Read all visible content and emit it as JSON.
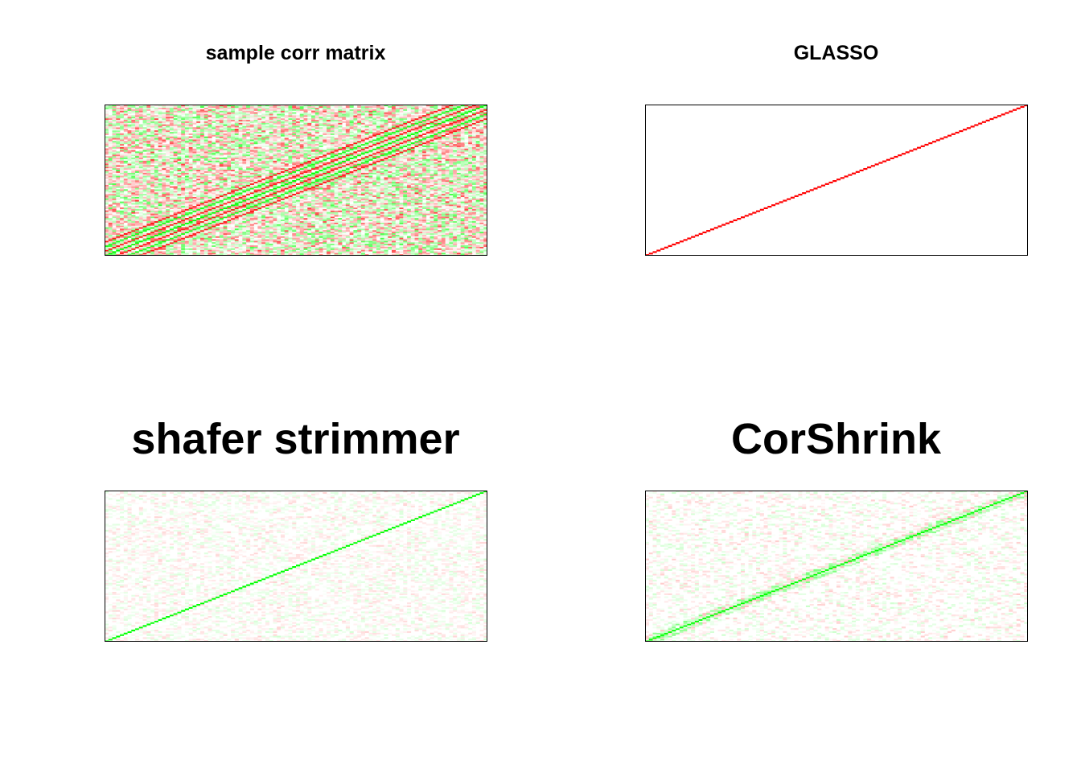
{
  "chart_data": [
    {
      "type": "heatmap",
      "title": "sample corr matrix",
      "xlabel": "",
      "ylabel": "",
      "colors": {
        "negative": "#ff0000",
        "neutral": "#ffffff",
        "positive": "#00ff00"
      },
      "matrix_size": 100,
      "diagonal": "main diagonal from bottom-left to top-right, strong band with parallel off-diagonal bands",
      "off_diagonal_density": 0.95,
      "off_diagonal_intensity": 0.8,
      "banded": true
    },
    {
      "type": "heatmap",
      "title": "GLASSO",
      "xlabel": "",
      "ylabel": "",
      "colors": {
        "negative": "#ff0000",
        "neutral": "#ffffff",
        "positive": "#00ff00"
      },
      "matrix_size": 100,
      "diagonal": "thin red main diagonal only",
      "off_diagonal_density": 0.0,
      "off_diagonal_intensity": 0.0,
      "banded": false
    },
    {
      "type": "heatmap",
      "title": "shafer strimmer",
      "xlabel": "",
      "ylabel": "",
      "colors": {
        "negative": "#ff0000",
        "neutral": "#ffffff",
        "positive": "#00ff00"
      },
      "matrix_size": 100,
      "diagonal": "thin green/red main diagonal",
      "off_diagonal_density": 0.6,
      "off_diagonal_intensity": 0.18,
      "banded": false
    },
    {
      "type": "heatmap",
      "title": "CorShrink",
      "xlabel": "",
      "ylabel": "",
      "colors": {
        "negative": "#ff0000",
        "neutral": "#ffffff",
        "positive": "#00ff00"
      },
      "matrix_size": 100,
      "diagonal": "green main diagonal with weak neighbouring band",
      "off_diagonal_density": 0.45,
      "off_diagonal_intensity": 0.22,
      "banded": true
    }
  ]
}
